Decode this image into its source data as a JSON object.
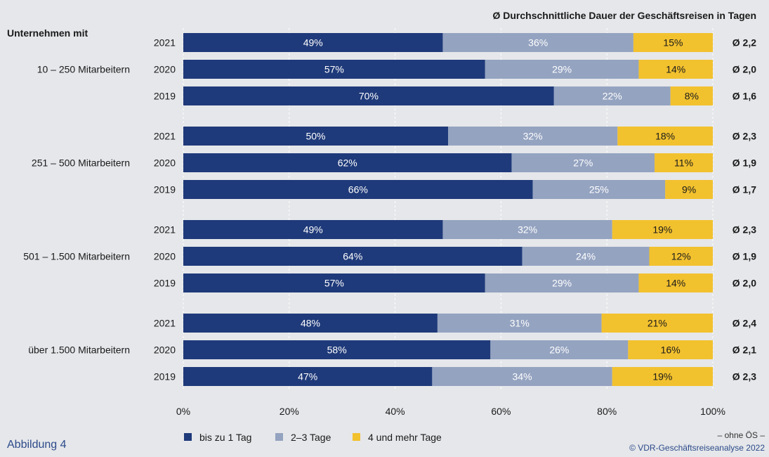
{
  "figure_label": "Abbildung 4",
  "note": "– ohne ÖS –",
  "copyright": "© VDR-Geschäftsreiseanalyse 2022",
  "colors": {
    "background": "#e5e7ea",
    "series_1": "#1f3a7a",
    "series_2": "#94a3c0",
    "series_3": "#f2c12e"
  },
  "chart_data": {
    "type": "bar",
    "orientation": "horizontal-stacked-100",
    "row_header": "Unternehmen mit",
    "avg_header": "Ø Durchschnittliche Dauer der Geschäftsreisen in Tagen",
    "xlim": [
      0,
      100
    ],
    "xticks": [
      "0%",
      "20%",
      "40%",
      "60%",
      "80%",
      "100%"
    ],
    "grid": true,
    "legend_position": "bottom",
    "series": [
      {
        "name": "bis zu 1 Tag",
        "color": "#1f3a7a"
      },
      {
        "name": "2–3 Tage",
        "color": "#94a3c0"
      },
      {
        "name": "4 und mehr Tage",
        "color": "#f2c12e"
      }
    ],
    "groups": [
      {
        "label": "10 – 250 Mitarbeitern",
        "rows": [
          {
            "year": "2021",
            "values": [
              49,
              36,
              15
            ],
            "avg": "Ø 2,2"
          },
          {
            "year": "2020",
            "values": [
              57,
              29,
              14
            ],
            "avg": "Ø 2,0"
          },
          {
            "year": "2019",
            "values": [
              70,
              22,
              8
            ],
            "avg": "Ø 1,6"
          }
        ]
      },
      {
        "label": "251 – 500 Mitarbeitern",
        "rows": [
          {
            "year": "2021",
            "values": [
              50,
              32,
              18
            ],
            "avg": "Ø 2,3"
          },
          {
            "year": "2020",
            "values": [
              62,
              27,
              11
            ],
            "avg": "Ø 1,9"
          },
          {
            "year": "2019",
            "values": [
              66,
              25,
              9
            ],
            "avg": "Ø 1,7"
          }
        ]
      },
      {
        "label": "501 – 1.500 Mitarbeitern",
        "rows": [
          {
            "year": "2021",
            "values": [
              49,
              32,
              19
            ],
            "avg": "Ø 2,3"
          },
          {
            "year": "2020",
            "values": [
              64,
              24,
              12
            ],
            "avg": "Ø 1,9"
          },
          {
            "year": "2019",
            "values": [
              57,
              29,
              14
            ],
            "avg": "Ø 2,0"
          }
        ]
      },
      {
        "label": "über 1.500 Mitarbeitern",
        "rows": [
          {
            "year": "2021",
            "values": [
              48,
              31,
              21
            ],
            "avg": "Ø 2,4"
          },
          {
            "year": "2020",
            "values": [
              58,
              26,
              16
            ],
            "avg": "Ø 2,1"
          },
          {
            "year": "2019",
            "values": [
              47,
              34,
              19
            ],
            "avg": "Ø 2,3"
          }
        ]
      }
    ]
  }
}
